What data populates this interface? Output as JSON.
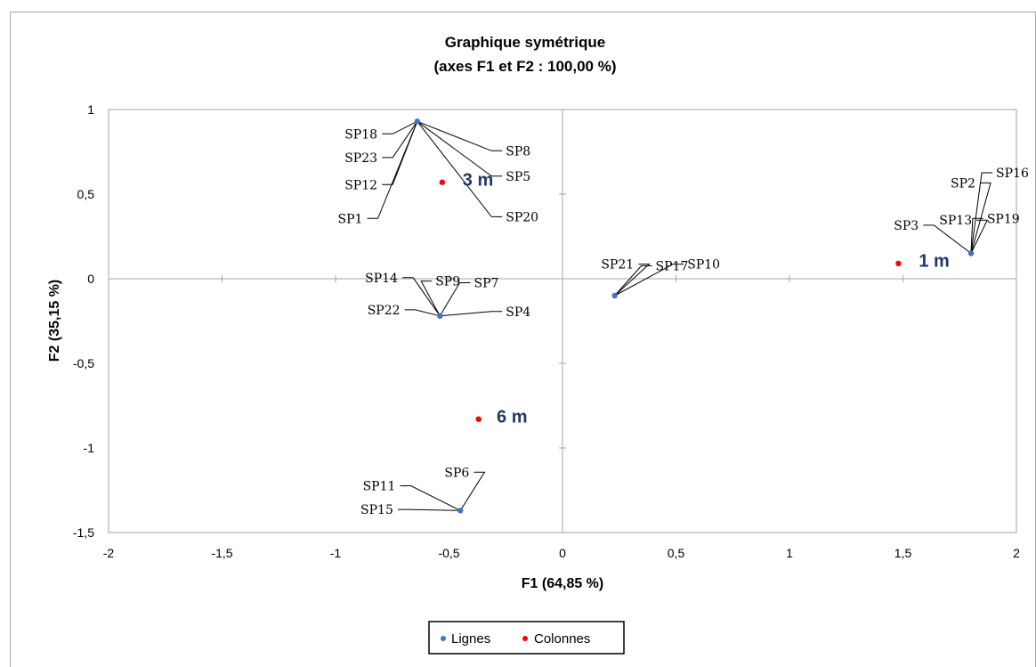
{
  "chart_data": {
    "type": "scatter",
    "title": [
      "Graphique symétrique",
      "(axes F1 et F2 : 100,00 %)"
    ],
    "xlabel": "F1 (64,85 %)",
    "ylabel": "F2 (35,15 %)",
    "xlim": [
      -2,
      2
    ],
    "ylim": [
      -1.5,
      1
    ],
    "xticks": [
      -2,
      -1.5,
      -1,
      -0.5,
      0,
      0.5,
      1,
      1.5,
      2
    ],
    "xtick_labels": [
      "-2",
      "-1,5",
      "-1",
      "-0,5",
      "0",
      "0,5",
      "1",
      "1,5",
      "2"
    ],
    "yticks": [
      -1.5,
      -1,
      -0.5,
      0,
      0.5,
      1
    ],
    "ytick_labels": [
      "-1,5",
      "-1",
      "-0,5",
      "0",
      "0,5",
      "1"
    ],
    "grid": false,
    "legend": {
      "position": "bottom",
      "entries": [
        "Lignes",
        "Colonnes"
      ]
    },
    "colors": {
      "Lignes": "#4472c4",
      "Colonnes": "#ff0000",
      "column_label": "#1f3864"
    },
    "series": [
      {
        "name": "Lignes",
        "points": [
          {
            "x": -0.64,
            "y": 0.93,
            "labels": [
              {
                "text": "SP18",
                "lx": -0.96,
                "ly": 0.83
              },
              {
                "text": "SP23",
                "lx": -0.96,
                "ly": 0.69
              },
              {
                "text": "SP12",
                "lx": -0.96,
                "ly": 0.53
              },
              {
                "text": "SP1",
                "lx": -0.99,
                "ly": 0.33
              },
              {
                "text": "SP8",
                "lx": -0.25,
                "ly": 0.73
              },
              {
                "text": "SP5",
                "lx": -0.25,
                "ly": 0.58
              },
              {
                "text": "SP20",
                "lx": -0.25,
                "ly": 0.34
              }
            ]
          },
          {
            "x": -0.54,
            "y": -0.22,
            "labels": [
              {
                "text": "SP14",
                "lx": -0.87,
                "ly": -0.02
              },
              {
                "text": "SP9",
                "lx": -0.56,
                "ly": -0.04
              },
              {
                "text": "SP7",
                "lx": -0.39,
                "ly": -0.05
              },
              {
                "text": "SP22",
                "lx": -0.86,
                "ly": -0.21
              },
              {
                "text": "SP4",
                "lx": -0.25,
                "ly": -0.22
              }
            ]
          },
          {
            "x": 0.23,
            "y": -0.1,
            "labels": [
              {
                "text": "SP21",
                "lx": 0.17,
                "ly": 0.06
              },
              {
                "text": "SP17",
                "lx": 0.41,
                "ly": 0.05
              },
              {
                "text": "SP10",
                "lx": 0.55,
                "ly": 0.06
              }
            ]
          },
          {
            "x": 1.8,
            "y": 0.15,
            "labels": [
              {
                "text": "SP2",
                "lx": 1.71,
                "ly": 0.54
              },
              {
                "text": "SP16",
                "lx": 1.91,
                "ly": 0.6
              },
              {
                "text": "SP3",
                "lx": 1.46,
                "ly": 0.29
              },
              {
                "text": "SP13",
                "lx": 1.66,
                "ly": 0.32
              },
              {
                "text": "SP19",
                "lx": 1.87,
                "ly": 0.33
              }
            ]
          },
          {
            "x": -0.45,
            "y": -1.37,
            "labels": [
              {
                "text": "SP11",
                "lx": -0.88,
                "ly": -1.25
              },
              {
                "text": "SP6",
                "lx": -0.52,
                "ly": -1.17
              },
              {
                "text": "SP15",
                "lx": -0.89,
                "ly": -1.39
              }
            ]
          }
        ]
      },
      {
        "name": "Colonnes",
        "points": [
          {
            "x": -0.53,
            "y": 0.57,
            "label": "3 m",
            "lx": -0.44,
            "ly": 0.55
          },
          {
            "x": 1.48,
            "y": 0.09,
            "label": "1 m",
            "lx": 1.57,
            "ly": 0.07
          },
          {
            "x": -0.37,
            "y": -0.83,
            "label": "6 m",
            "lx": -0.29,
            "ly": -0.85
          }
        ]
      }
    ]
  }
}
